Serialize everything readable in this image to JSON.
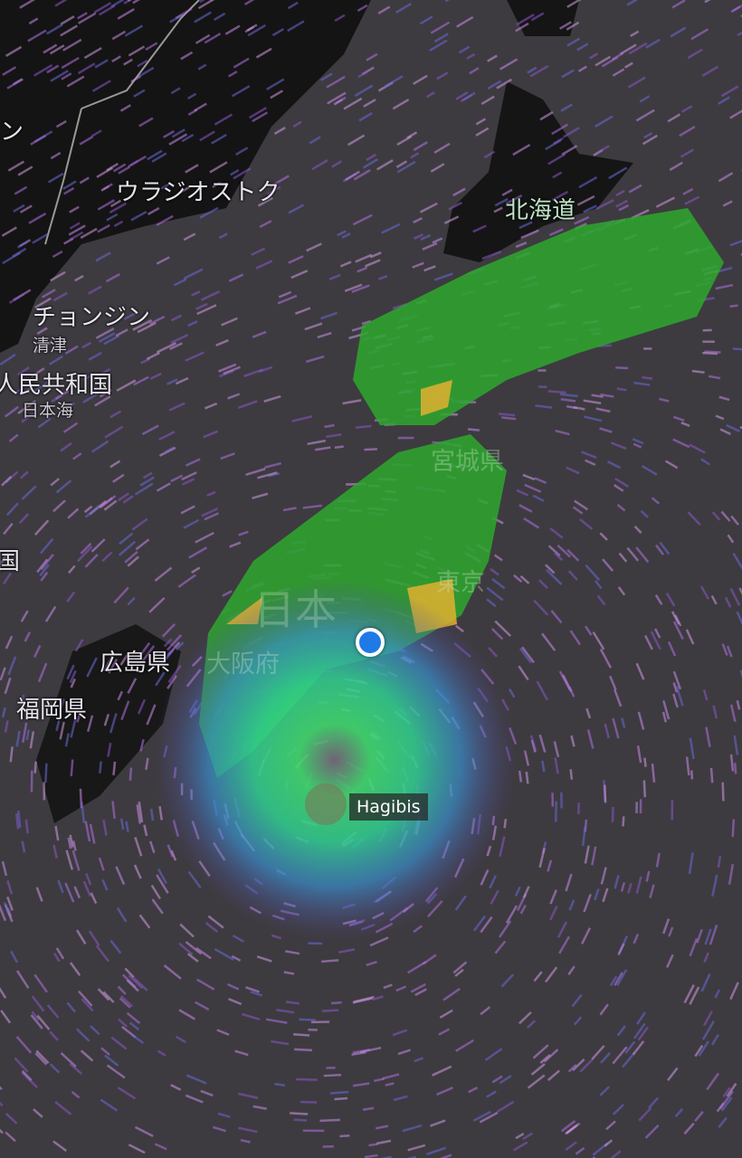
{
  "map": {
    "labels": {
      "vladivostok": "ウラジオストク",
      "hokkaido": "北海道",
      "chongjin": "チョンジン",
      "chongjin_kanji": "清津",
      "peoples_republic": "人民共和国",
      "sea_of_japan": "日本海",
      "miyagi": "宮城県",
      "tokyo": "東京",
      "japan": "日本",
      "osaka": "大阪府",
      "hiroshima": "広島県",
      "fukuoka": "福岡県",
      "edge_top": "ン",
      "edge_left": "国"
    },
    "storm": {
      "name": "Hagibis",
      "icon": "typhoon-icon"
    },
    "current_location": {
      "icon": "location-dot-icon",
      "color": "#1f7ae8"
    },
    "colors": {
      "background": "#3d3b40",
      "land": "#161616",
      "wind": "#b070e0",
      "rain_light": "#2ea82e",
      "rain_heavy": "#e0b030"
    }
  }
}
